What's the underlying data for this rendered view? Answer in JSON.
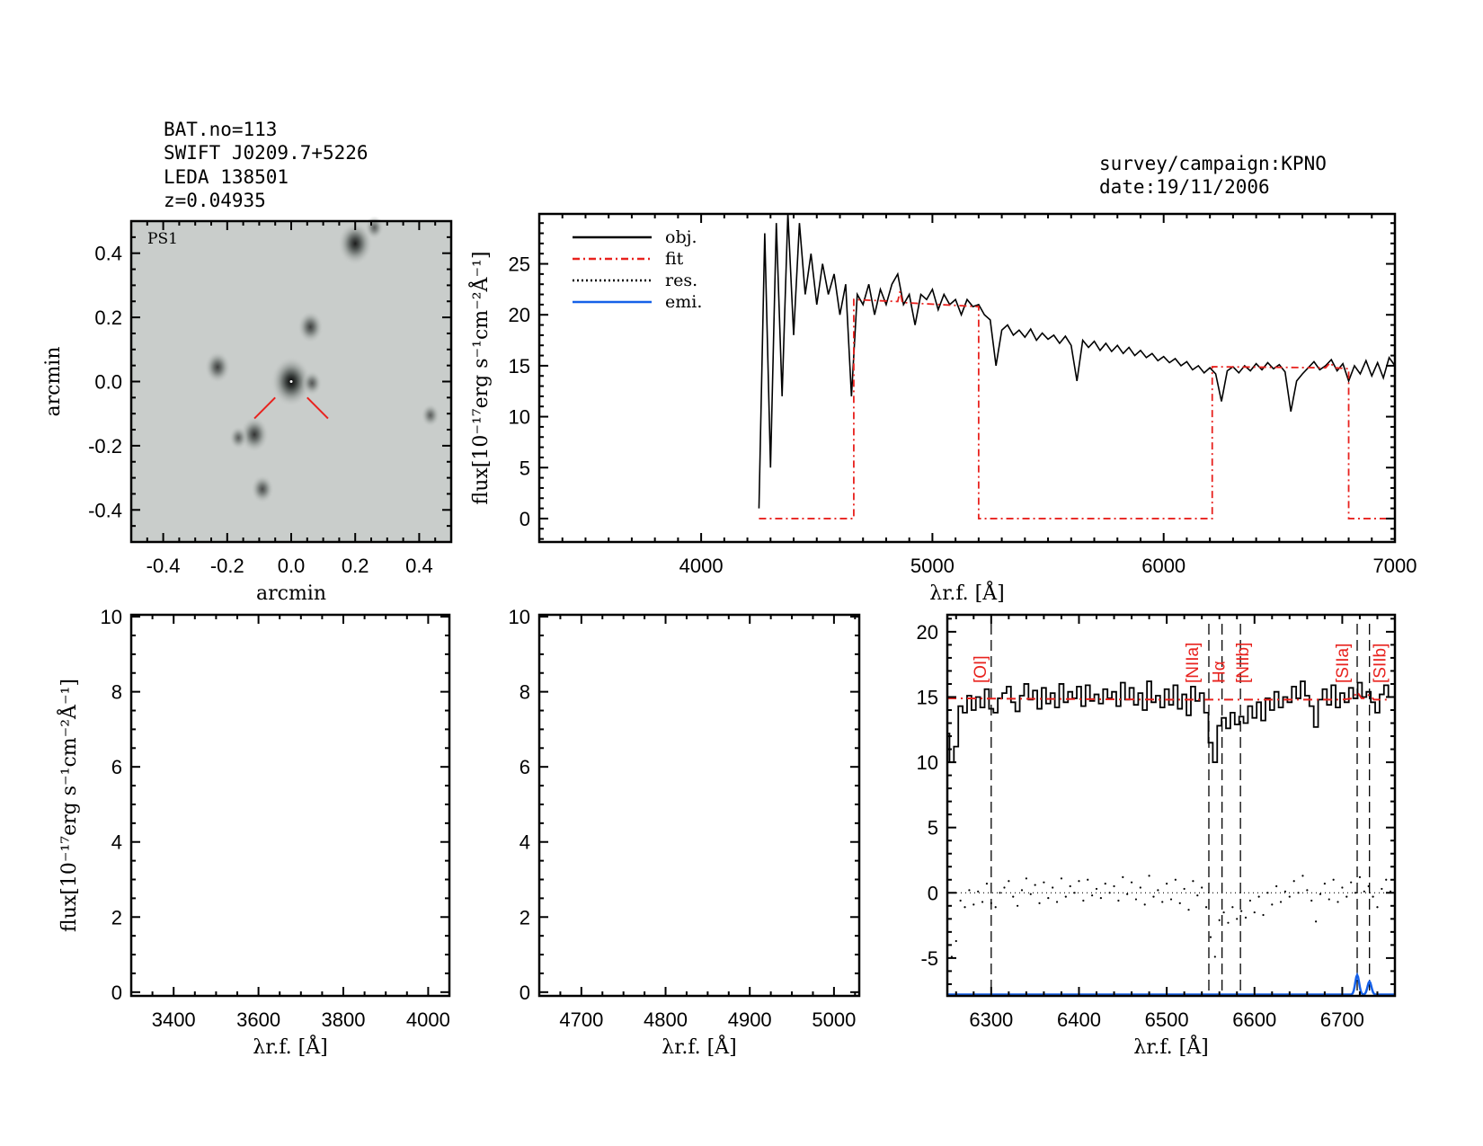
{
  "header_left": [
    "BAT.no=113",
    "SWIFT J0209.7+5226",
    "LEDA 138501",
    "z=0.04935"
  ],
  "header_right": [
    "survey/campaign:KPNO",
    "date:19/11/2006"
  ],
  "colors": {
    "obj": "#000000",
    "fit": "#e8221e",
    "res": "#000000",
    "emi": "#1560e8",
    "image_bg": "#c9cdcb"
  },
  "chart_data": [
    {
      "type": "image",
      "label": "PS1",
      "xlabel": "arcmin",
      "ylabel": "arcmin",
      "xlim": [
        -0.5,
        0.5
      ],
      "ylim": [
        -0.5,
        0.5
      ],
      "xticks": [
        "-0.4",
        "-0.2",
        "0.0",
        "0.2",
        "0.4"
      ],
      "yticks": [
        "-0.4",
        "-0.2",
        "0.0",
        "0.2",
        "0.4"
      ],
      "sources": [
        {
          "x": 0.0,
          "y": 0.0,
          "brightness": 1.0
        },
        {
          "x": 0.2,
          "y": 0.43,
          "brightness": 0.8
        },
        {
          "x": 0.06,
          "y": 0.17,
          "brightness": 0.5
        },
        {
          "x": -0.23,
          "y": 0.045,
          "brightness": 0.5
        },
        {
          "x": -0.115,
          "y": -0.165,
          "brightness": 0.6
        },
        {
          "x": -0.09,
          "y": -0.335,
          "brightness": 0.4
        },
        {
          "x": 0.065,
          "y": -0.005,
          "brightness": 0.3
        },
        {
          "x": 0.26,
          "y": 0.48,
          "brightness": 0.25
        },
        {
          "x": 0.435,
          "y": -0.105,
          "brightness": 0.25
        },
        {
          "x": -0.165,
          "y": -0.175,
          "brightness": 0.25
        }
      ],
      "marker_color": "#e8221e"
    },
    {
      "type": "line",
      "xlabel": "λr.f. [Å]",
      "ylabel": "flux[10⁻¹⁷erg s⁻¹cm⁻²Å⁻¹]",
      "xlim": [
        3300,
        7000
      ],
      "ylim": [
        -2.3,
        29.9
      ],
      "xticks": [
        4000,
        5000,
        6000,
        7000
      ],
      "yticks": [
        0,
        5,
        10,
        15,
        20,
        25
      ],
      "legend": [
        "obj.",
        "fit",
        "res.",
        "emi."
      ],
      "legend_position": "top-left",
      "series": [
        {
          "name": "obj.",
          "style": "solid",
          "x": [
            4250,
            4275,
            4300,
            4325,
            4350,
            4375,
            4400,
            4425,
            4450,
            4475,
            4500,
            4525,
            4550,
            4575,
            4600,
            4625,
            4650,
            4675,
            4700,
            4725,
            4750,
            4775,
            4800,
            4825,
            4850,
            4875,
            4900,
            4925,
            4950,
            4975,
            5000,
            5025,
            5050,
            5075,
            5100,
            5125,
            5150,
            5175,
            5200,
            5225,
            5250,
            5275,
            5300,
            5325,
            5350,
            5375,
            5400,
            5425,
            5450,
            5475,
            5500,
            5525,
            5550,
            5575,
            5600,
            5625,
            5650,
            5675,
            5700,
            5725,
            5750,
            5775,
            5800,
            5825,
            5850,
            5875,
            5900,
            5925,
            5950,
            5975,
            6000,
            6025,
            6050,
            6075,
            6100,
            6125,
            6150,
            6175,
            6200,
            6225,
            6250,
            6275,
            6300,
            6325,
            6350,
            6375,
            6400,
            6425,
            6450,
            6475,
            6500,
            6525,
            6550,
            6575,
            6600,
            6625,
            6650,
            6675,
            6700,
            6725,
            6750,
            6775,
            6800,
            6825,
            6850,
            6875,
            6900,
            6925,
            6950,
            6975,
            7000
          ],
          "y": [
            1,
            28,
            5,
            29,
            12,
            30,
            18,
            29,
            22,
            26,
            21,
            25,
            22,
            24,
            20,
            23,
            12,
            22,
            21,
            23,
            20,
            22.5,
            21,
            23,
            24,
            21,
            22,
            19,
            22,
            21.5,
            22.5,
            20.5,
            22,
            21,
            21.5,
            20,
            21.5,
            20.8,
            21,
            20,
            19.5,
            15,
            18.5,
            19,
            18,
            18.5,
            17.8,
            18.6,
            17.5,
            18.2,
            17.6,
            18,
            17.2,
            17.9,
            17,
            13.5,
            17.5,
            16.8,
            17.4,
            16.5,
            17.2,
            16.4,
            17,
            16.2,
            16.8,
            16,
            16.5,
            15.8,
            16.2,
            15.5,
            15.9,
            15.3,
            15.7,
            15,
            15.4,
            14.6,
            15,
            14.3,
            14.8,
            14.2,
            11.5,
            14.5,
            14.9,
            14.3,
            15,
            14.5,
            15.2,
            14.6,
            15.3,
            14.7,
            15.1,
            14.4,
            10.5,
            13.5,
            14.2,
            14.8,
            15.4,
            14.6,
            15,
            15.6,
            14.5,
            15.2,
            13.5,
            15,
            14.2,
            15.5,
            14,
            15.3,
            13.8,
            15.8,
            15
          ]
        },
        {
          "name": "fit",
          "style": "dash-dot",
          "x": [
            4250,
            4660,
            4660,
            4850,
            4860,
            4870,
            5200,
            5200,
            6210,
            6210,
            6700,
            6720,
            6740,
            6800,
            6800,
            7000
          ],
          "y": [
            0,
            0,
            21.5,
            21.3,
            22.3,
            21.2,
            20.8,
            0,
            0,
            14.9,
            14.8,
            15.3,
            14.8,
            14.7,
            0,
            0
          ]
        }
      ]
    },
    {
      "type": "line",
      "xlabel": "λr.f. [Å]",
      "ylabel": "flux[10⁻¹⁷erg s⁻¹cm⁻²Å⁻¹]",
      "xlim": [
        3300,
        4050
      ],
      "ylim": [
        -0.1,
        10.05
      ],
      "xticks": [
        3400,
        3600,
        3800,
        4000
      ],
      "yticks": [
        0,
        2,
        4,
        6,
        8,
        10
      ],
      "series": []
    },
    {
      "type": "line",
      "xlabel": "λr.f. [Å]",
      "xlim": [
        4650,
        5030
      ],
      "ylim": [
        -0.1,
        10.05
      ],
      "xticks": [
        4700,
        4800,
        4900,
        5000
      ],
      "yticks": [
        0,
        2,
        4,
        6,
        8,
        10
      ],
      "series": []
    },
    {
      "type": "line",
      "xlabel": "λr.f. [Å]",
      "xlim": [
        6250,
        6760
      ],
      "ylim": [
        -7.9,
        21.3
      ],
      "xticks": [
        6300,
        6400,
        6500,
        6600,
        6700
      ],
      "yticks": [
        -5,
        0,
        5,
        10,
        15,
        20
      ],
      "lines": [
        {
          "label": "[OI]",
          "wavelength": 6300
        },
        {
          "label": "[NIIa]",
          "wavelength": 6548
        },
        {
          "label": "Hα",
          "wavelength": 6563
        },
        {
          "label": "[NIIb]",
          "wavelength": 6584
        },
        {
          "label": "[SIIa]",
          "wavelength": 6717
        },
        {
          "label": "[SIIb]",
          "wavelength": 6731
        }
      ],
      "x": [
        6250,
        6255,
        6260,
        6265,
        6270,
        6275,
        6280,
        6285,
        6290,
        6295,
        6300,
        6305,
        6310,
        6315,
        6320,
        6325,
        6330,
        6335,
        6340,
        6345,
        6350,
        6355,
        6360,
        6365,
        6370,
        6375,
        6380,
        6385,
        6390,
        6395,
        6400,
        6405,
        6410,
        6415,
        6420,
        6425,
        6430,
        6435,
        6440,
        6445,
        6450,
        6455,
        6460,
        6465,
        6470,
        6475,
        6480,
        6485,
        6490,
        6495,
        6500,
        6505,
        6510,
        6515,
        6520,
        6525,
        6530,
        6535,
        6540,
        6545,
        6550,
        6555,
        6560,
        6565,
        6570,
        6575,
        6580,
        6585,
        6590,
        6595,
        6600,
        6605,
        6610,
        6615,
        6620,
        6625,
        6630,
        6635,
        6640,
        6645,
        6650,
        6655,
        6660,
        6665,
        6670,
        6675,
        6680,
        6685,
        6690,
        6695,
        6700,
        6705,
        6710,
        6715,
        6720,
        6725,
        6730,
        6735,
        6740,
        6745,
        6750,
        6755
      ],
      "series": [
        {
          "name": "obj.",
          "style": "steps",
          "y": [
            12.2,
            10.0,
            11.2,
            14.3,
            13.8,
            15.1,
            14.0,
            15.0,
            14.2,
            15.6,
            14.1,
            13.8,
            14.9,
            15.3,
            15.8,
            14.6,
            13.9,
            15.1,
            16.0,
            14.8,
            15.5,
            14.1,
            15.7,
            14.5,
            15.3,
            14.2,
            16.0,
            14.6,
            15.4,
            14.9,
            15.8,
            14.3,
            15.9,
            14.7,
            15.2,
            14.5,
            15.6,
            14.9,
            15.4,
            14.3,
            16.1,
            14.8,
            15.7,
            14.4,
            15.3,
            14.0,
            16.2,
            14.6,
            15.1,
            14.2,
            15.6,
            14.4,
            15.9,
            14.1,
            15.2,
            13.6,
            15.8,
            14.7,
            15.3,
            13.8,
            11.5,
            10.0,
            12.8,
            13.4,
            12.6,
            13.8,
            12.9,
            13.5,
            13.0,
            14.3,
            13.4,
            14.6,
            13.2,
            14.9,
            14.0,
            15.4,
            14.2,
            15.0,
            14.6,
            15.8,
            14.9,
            16.2,
            15.1,
            14.3,
            12.7,
            14.8,
            15.6,
            14.4,
            15.9,
            14.2,
            15.3,
            14.6,
            15.7,
            14.9,
            16.1,
            15.0,
            15.4,
            14.6,
            13.8,
            15.2,
            15.9,
            15.0
          ]
        },
        {
          "name": "res.",
          "style": "dots",
          "y": [
            -2.7,
            -4.9,
            -3.7,
            -0.6,
            -1.1,
            0.2,
            -0.9,
            0.1,
            -0.7,
            0.7,
            -0.8,
            -1.1,
            0,
            0.4,
            0.9,
            -0.3,
            -1.0,
            0.2,
            1.1,
            -0.1,
            0.6,
            -0.8,
            0.8,
            -0.4,
            0.4,
            -0.7,
            1.1,
            -0.3,
            0.5,
            0,
            0.9,
            -0.6,
            1.0,
            -0.2,
            0.3,
            -0.4,
            0.7,
            0,
            0.5,
            -0.6,
            1.2,
            -0.1,
            0.8,
            -0.5,
            0.4,
            -0.9,
            1.3,
            -0.3,
            0.2,
            -0.7,
            0.7,
            -0.5,
            1.0,
            -0.8,
            0.3,
            -1.3,
            0.9,
            -0.2,
            0.4,
            -1.1,
            -3.4,
            -4.9,
            -2.1,
            -1.5,
            -2.3,
            -1.1,
            -2.0,
            -1.4,
            -1.9,
            -0.6,
            -1.5,
            -0.3,
            -1.7,
            0,
            -0.9,
            0.5,
            -0.7,
            0.1,
            -0.3,
            0.9,
            0,
            1.3,
            0.2,
            -0.6,
            -2.2,
            -0.1,
            0.7,
            -0.5,
            1.0,
            -0.7,
            0.4,
            -0.3,
            0.8,
            0,
            1.2,
            0.1,
            0.5,
            -0.3,
            -1.1,
            0.3,
            1.0,
            0.1
          ]
        },
        {
          "name": "fit",
          "style": "dash-dot",
          "x": [
            6250,
            6500,
            6700,
            6712,
            6717,
            6722,
            6726,
            6731,
            6736,
            6755
          ],
          "y": [
            14.9,
            14.8,
            14.8,
            14.9,
            15.4,
            14.9,
            14.9,
            15.2,
            14.8,
            14.8
          ]
        },
        {
          "name": "emi.",
          "style": "solid",
          "baseline": -7.8,
          "peaks": [
            {
              "center": 6717,
              "value": -6.3
            },
            {
              "center": 6731,
              "value": -6.8
            }
          ]
        }
      ]
    }
  ]
}
